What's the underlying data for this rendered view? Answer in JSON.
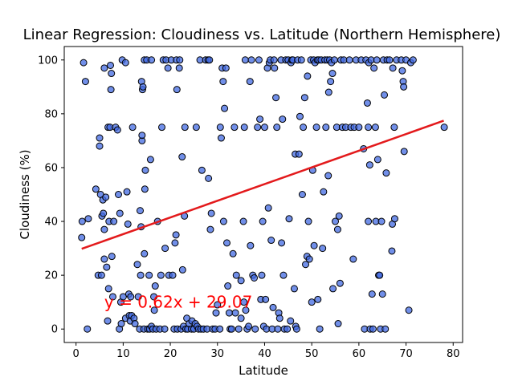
{
  "chart_data": {
    "type": "scatter",
    "title": "Linear Regression: Cloudiness vs. Latitude (Northern Hemisphere)",
    "xlabel": "Latitude",
    "ylabel": "Cloudiness (%)",
    "xlim": [
      -2.5,
      82
    ],
    "ylim": [
      -5,
      105
    ],
    "xticks": [
      0,
      10,
      20,
      30,
      40,
      50,
      60,
      70,
      80
    ],
    "yticks": [
      0,
      20,
      40,
      60,
      80,
      100
    ],
    "grid": false,
    "marker_color": "#4169E1",
    "marker_edge_color": "#000000",
    "line_color": "#E31A1C",
    "regression": {
      "slope": 0.62,
      "intercept": 29.07,
      "x_range": [
        1.2,
        78
      ],
      "equation": "y = 0.62x + 29.07",
      "annotation_color": "#FF0000",
      "annotation_at": [
        6,
        10
      ]
    },
    "points": [
      [
        1.2,
        34
      ],
      [
        1.3,
        40
      ],
      [
        1.6,
        99
      ],
      [
        2,
        92
      ],
      [
        2.4,
        0
      ],
      [
        2.6,
        41
      ],
      [
        4.2,
        52
      ],
      [
        4.7,
        20
      ],
      [
        5,
        71
      ],
      [
        5,
        68
      ],
      [
        5.2,
        50
      ],
      [
        5.4,
        20
      ],
      [
        5.5,
        42
      ],
      [
        5.7,
        48
      ],
      [
        5.8,
        43
      ],
      [
        6,
        97
      ],
      [
        6,
        26
      ],
      [
        6,
        37
      ],
      [
        6.3,
        49
      ],
      [
        6.5,
        23
      ],
      [
        6.7,
        3
      ],
      [
        6.8,
        75
      ],
      [
        6.9,
        15
      ],
      [
        7,
        40
      ],
      [
        7.2,
        75
      ],
      [
        7.3,
        98
      ],
      [
        7.4,
        89
      ],
      [
        7.5,
        95
      ],
      [
        7.6,
        27
      ],
      [
        7.8,
        12
      ],
      [
        8,
        40
      ],
      [
        8.4,
        75
      ],
      [
        8.8,
        74
      ],
      [
        9,
        50
      ],
      [
        9.2,
        0
      ],
      [
        9.3,
        43
      ],
      [
        9.5,
        10
      ],
      [
        9.6,
        2
      ],
      [
        9.8,
        100
      ],
      [
        10,
        12
      ],
      [
        10.5,
        4
      ],
      [
        10.5,
        99
      ],
      [
        10.8,
        51
      ],
      [
        11,
        39
      ],
      [
        11.2,
        13
      ],
      [
        11.3,
        5
      ],
      [
        11.5,
        3
      ],
      [
        11.6,
        12
      ],
      [
        11.8,
        5
      ],
      [
        12,
        75
      ],
      [
        12.3,
        4
      ],
      [
        12.5,
        2
      ],
      [
        13,
        24
      ],
      [
        13.2,
        12
      ],
      [
        13.5,
        0
      ],
      [
        13.6,
        44
      ],
      [
        13.7,
        20
      ],
      [
        13.8,
        38
      ],
      [
        13.9,
        92
      ],
      [
        14,
        70
      ],
      [
        14,
        72
      ],
      [
        14.1,
        89
      ],
      [
        14.2,
        90
      ],
      [
        14.4,
        0
      ],
      [
        14.5,
        100
      ],
      [
        14.5,
        28
      ],
      [
        14.6,
        52
      ],
      [
        14.7,
        59
      ],
      [
        15,
        100
      ],
      [
        15.2,
        0
      ],
      [
        15.5,
        20
      ],
      [
        15.6,
        0
      ],
      [
        15.8,
        63
      ],
      [
        16,
        100
      ],
      [
        16,
        1
      ],
      [
        16.3,
        0
      ],
      [
        16.5,
        12
      ],
      [
        16.6,
        7
      ],
      [
        16.8,
        16
      ],
      [
        17,
        0
      ],
      [
        17.3,
        40
      ],
      [
        17.8,
        0
      ],
      [
        18,
        20
      ],
      [
        18.2,
        75
      ],
      [
        18.5,
        100
      ],
      [
        18.8,
        0
      ],
      [
        18.9,
        30
      ],
      [
        19.1,
        100
      ],
      [
        19.5,
        97
      ],
      [
        19.7,
        20
      ],
      [
        20.2,
        100
      ],
      [
        20.5,
        20
      ],
      [
        20.8,
        0
      ],
      [
        21,
        32
      ],
      [
        21.2,
        35
      ],
      [
        21.3,
        100
      ],
      [
        21.4,
        89
      ],
      [
        21.5,
        0
      ],
      [
        21.9,
        97
      ],
      [
        22,
        100
      ],
      [
        22.3,
        0
      ],
      [
        22.5,
        64
      ],
      [
        22.6,
        22
      ],
      [
        22.8,
        1
      ],
      [
        23,
        42
      ],
      [
        23.1,
        75
      ],
      [
        23.3,
        0
      ],
      [
        23.5,
        4
      ],
      [
        23.7,
        0
      ],
      [
        24,
        2
      ],
      [
        24.5,
        0
      ],
      [
        24.6,
        3
      ],
      [
        25,
        0
      ],
      [
        25.3,
        2
      ],
      [
        25.5,
        75
      ],
      [
        25.7,
        1
      ],
      [
        26,
        0
      ],
      [
        26.3,
        100
      ],
      [
        26.5,
        0
      ],
      [
        26.7,
        59
      ],
      [
        27,
        0
      ],
      [
        27.5,
        100
      ],
      [
        27.8,
        0
      ],
      [
        28,
        100
      ],
      [
        28.1,
        56
      ],
      [
        28.3,
        100
      ],
      [
        28.5,
        37
      ],
      [
        28.7,
        43
      ],
      [
        29,
        0
      ],
      [
        29.5,
        0
      ],
      [
        29.7,
        6
      ],
      [
        30,
        9
      ],
      [
        30.5,
        0
      ],
      [
        30.6,
        75
      ],
      [
        30.8,
        71
      ],
      [
        31,
        97
      ],
      [
        31.2,
        92
      ],
      [
        31.3,
        40
      ],
      [
        31.5,
        82
      ],
      [
        31.8,
        97
      ],
      [
        32,
        32
      ],
      [
        32.2,
        16
      ],
      [
        32.5,
        6
      ],
      [
        32.7,
        0
      ],
      [
        33,
        0
      ],
      [
        33.3,
        28
      ],
      [
        33.6,
        75
      ],
      [
        33.8,
        6
      ],
      [
        34,
        20
      ],
      [
        34.5,
        0
      ],
      [
        35,
        4
      ],
      [
        35,
        18
      ],
      [
        35.5,
        40
      ],
      [
        35.6,
        10
      ],
      [
        35.7,
        75
      ],
      [
        35.9,
        100
      ],
      [
        36,
        7
      ],
      [
        36.3,
        0
      ],
      [
        36.6,
        1
      ],
      [
        36.9,
        92
      ],
      [
        37,
        31
      ],
      [
        37.2,
        100
      ],
      [
        37.5,
        20
      ],
      [
        37.8,
        19
      ],
      [
        38,
        0
      ],
      [
        38.5,
        75
      ],
      [
        38.8,
        100
      ],
      [
        39,
        78
      ],
      [
        39.2,
        11
      ],
      [
        39.4,
        20
      ],
      [
        39.6,
        40
      ],
      [
        39.8,
        1
      ],
      [
        40,
        75
      ],
      [
        40.2,
        11
      ],
      [
        40.4,
        0
      ],
      [
        40.6,
        97
      ],
      [
        40.8,
        45
      ],
      [
        41,
        99
      ],
      [
        41.2,
        100
      ],
      [
        41.4,
        33
      ],
      [
        41.6,
        0
      ],
      [
        41.8,
        8
      ],
      [
        42,
        100
      ],
      [
        42.1,
        97
      ],
      [
        42.4,
        86
      ],
      [
        42.6,
        75
      ],
      [
        42.8,
        0
      ],
      [
        43,
        6
      ],
      [
        43.2,
        4
      ],
      [
        43.5,
        100
      ],
      [
        43.6,
        32
      ],
      [
        43.8,
        78
      ],
      [
        44,
        20
      ],
      [
        44.2,
        0
      ],
      [
        44.5,
        100
      ],
      [
        44.8,
        0
      ],
      [
        45,
        100
      ],
      [
        45.2,
        41
      ],
      [
        45.5,
        3
      ],
      [
        45.6,
        99
      ],
      [
        45.8,
        100
      ],
      [
        46,
        100
      ],
      [
        46.3,
        15
      ],
      [
        46.5,
        65
      ],
      [
        46.6,
        1
      ],
      [
        46.8,
        0
      ],
      [
        47,
        100
      ],
      [
        47.3,
        65
      ],
      [
        47.5,
        79
      ],
      [
        47.8,
        100
      ],
      [
        48,
        50
      ],
      [
        48.2,
        75
      ],
      [
        48.5,
        86
      ],
      [
        48.7,
        24
      ],
      [
        49,
        27
      ],
      [
        49.1,
        94
      ],
      [
        49.3,
        40
      ],
      [
        49.5,
        26
      ],
      [
        49.8,
        100
      ],
      [
        50,
        10
      ],
      [
        50.2,
        59
      ],
      [
        50.4,
        100
      ],
      [
        50.5,
        31
      ],
      [
        50.7,
        99
      ],
      [
        51,
        75
      ],
      [
        51.2,
        100
      ],
      [
        51.3,
        11
      ],
      [
        51.5,
        100
      ],
      [
        51.7,
        0
      ],
      [
        52,
        100
      ],
      [
        52.3,
        30
      ],
      [
        52.5,
        51
      ],
      [
        52.8,
        100
      ],
      [
        53,
        75
      ],
      [
        53.3,
        100
      ],
      [
        53.5,
        57
      ],
      [
        53.6,
        88
      ],
      [
        53.8,
        100
      ],
      [
        54,
        92
      ],
      [
        54.2,
        99
      ],
      [
        54.4,
        95
      ],
      [
        54.5,
        15
      ],
      [
        54.8,
        100
      ],
      [
        55,
        40
      ],
      [
        55.3,
        75
      ],
      [
        55.5,
        37
      ],
      [
        55.6,
        2
      ],
      [
        55.8,
        42
      ],
      [
        56,
        17
      ],
      [
        56.2,
        100
      ],
      [
        56.5,
        75
      ],
      [
        56.8,
        100
      ],
      [
        57.2,
        75
      ],
      [
        58,
        100
      ],
      [
        58.3,
        75
      ],
      [
        58.8,
        26
      ],
      [
        59,
        75
      ],
      [
        59.4,
        100
      ],
      [
        60,
        75
      ],
      [
        60.5,
        100
      ],
      [
        61,
        67
      ],
      [
        61.2,
        0
      ],
      [
        61.5,
        100
      ],
      [
        61.8,
        84
      ],
      [
        62,
        75
      ],
      [
        62,
        40
      ],
      [
        62.1,
        99
      ],
      [
        62.3,
        61
      ],
      [
        62.4,
        0
      ],
      [
        62.6,
        100
      ],
      [
        62.8,
        13
      ],
      [
        63,
        0
      ],
      [
        63.2,
        97
      ],
      [
        63.5,
        75
      ],
      [
        63.6,
        40
      ],
      [
        63.8,
        100
      ],
      [
        64,
        63
      ],
      [
        64.2,
        20
      ],
      [
        64.4,
        20
      ],
      [
        64.6,
        0
      ],
      [
        64.8,
        40
      ],
      [
        65,
        13
      ],
      [
        65.2,
        100
      ],
      [
        65.4,
        87
      ],
      [
        65.6,
        0
      ],
      [
        65.8,
        58
      ],
      [
        66,
        100
      ],
      [
        66.5,
        100
      ],
      [
        67,
        29
      ],
      [
        67.1,
        39
      ],
      [
        67.2,
        97
      ],
      [
        67.5,
        75
      ],
      [
        67.6,
        41
      ],
      [
        68,
        100
      ],
      [
        69,
        100
      ],
      [
        69.2,
        96
      ],
      [
        69.4,
        92
      ],
      [
        69.5,
        90
      ],
      [
        69.6,
        66
      ],
      [
        70,
        100
      ],
      [
        70.6,
        7
      ],
      [
        71,
        99
      ],
      [
        71.5,
        100
      ],
      [
        78.1,
        75
      ]
    ]
  }
}
